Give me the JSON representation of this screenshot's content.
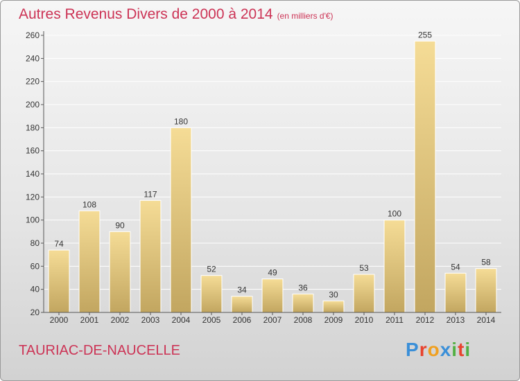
{
  "header": {
    "title": "Autres Revenus Divers de 2000 à 2014",
    "subtitle": "(en milliers d'€)"
  },
  "footer": {
    "place": "TAURIAC-DE-NAUCELLE",
    "logo_text": "Proxiti",
    "logo_colors": [
      "#3a8fd8",
      "#e8432e",
      "#f0a020",
      "#3a8fd8",
      "#52b043",
      "#e8432e",
      "#52b043"
    ]
  },
  "colors": {
    "title": "#cc3355",
    "bar_light": "#f5dc96",
    "bar_dark": "#c2a660",
    "axis": "#555555",
    "grid": "#ffffff"
  },
  "chart_data": {
    "type": "bar",
    "title": "Autres Revenus Divers de 2000 à 2014",
    "subtitle": "(en milliers d'€)",
    "categories": [
      "2000",
      "2001",
      "2002",
      "2003",
      "2004",
      "2005",
      "2006",
      "2007",
      "2008",
      "2009",
      "2010",
      "2011",
      "2012",
      "2013",
      "2014"
    ],
    "values": [
      74,
      108,
      90,
      117,
      180,
      52,
      34,
      49,
      36,
      30,
      53,
      100,
      255,
      54,
      58
    ],
    "ylim": [
      20,
      260
    ],
    "yticks": [
      20,
      40,
      60,
      80,
      100,
      120,
      140,
      160,
      180,
      200,
      220,
      240,
      260
    ],
    "grid": true,
    "xlabel": "",
    "ylabel": ""
  }
}
